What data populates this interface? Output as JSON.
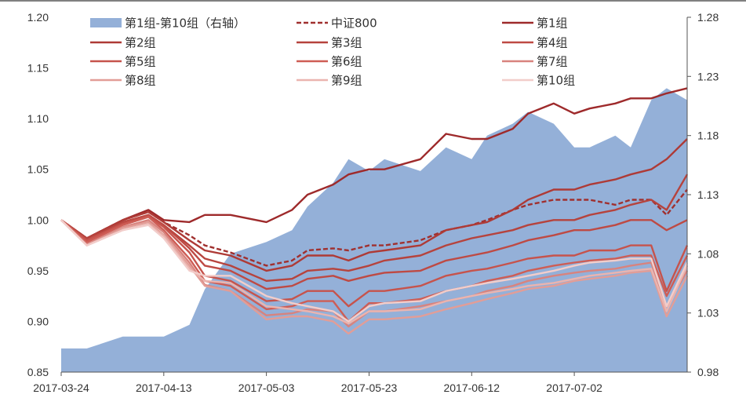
{
  "chart_data": {
    "type": "line",
    "x_dates": [
      "2017-03-24",
      "2017-03-29",
      "2017-04-05",
      "2017-04-10",
      "2017-04-13",
      "2017-04-18",
      "2017-04-21",
      "2017-04-26",
      "2017-05-03",
      "2017-05-08",
      "2017-05-11",
      "2017-05-16",
      "2017-05-19",
      "2017-05-23",
      "2017-05-26",
      "2017-06-02",
      "2017-06-07",
      "2017-06-12",
      "2017-06-15",
      "2017-06-20",
      "2017-06-23",
      "2017-06-28",
      "2017-07-02",
      "2017-07-05",
      "2017-07-10",
      "2017-07-13",
      "2017-07-17",
      "2017-07-20",
      "2017-07-24"
    ],
    "x_tick_labels": [
      "2017-03-24",
      "2017-04-13",
      "2017-05-03",
      "2017-05-23",
      "2017-06-12",
      "2017-07-02"
    ],
    "x_tick_dates": [
      "2017-03-24",
      "2017-04-13",
      "2017-05-03",
      "2017-05-23",
      "2017-06-12",
      "2017-07-02"
    ],
    "y_left": {
      "ticks": [
        "0.85",
        "0.90",
        "0.95",
        "1.00",
        "1.05",
        "1.10",
        "1.15",
        "1.20"
      ],
      "range": [
        0.85,
        1.2
      ]
    },
    "y_right": {
      "ticks": [
        "0.98",
        "1.03",
        "1.08",
        "1.13",
        "1.18",
        "1.23",
        "1.28"
      ],
      "range": [
        0.98,
        1.28
      ]
    },
    "area_series": {
      "name": "第1组-第10组（右轴）",
      "axis": "right",
      "color": "#94B0D8",
      "values": [
        1.0,
        1.0,
        1.01,
        1.01,
        1.01,
        1.02,
        1.05,
        1.08,
        1.09,
        1.1,
        1.12,
        1.14,
        1.16,
        1.15,
        1.16,
        1.15,
        1.17,
        1.16,
        1.18,
        1.19,
        1.2,
        1.19,
        1.17,
        1.17,
        1.18,
        1.17,
        1.21,
        1.22,
        1.21
      ]
    },
    "series": [
      {
        "name": "中证800",
        "color": "#A0302F",
        "dash": true,
        "values": [
          1.0,
          0.982,
          1.0,
          1.008,
          0.998,
          0.985,
          0.975,
          0.968,
          0.955,
          0.96,
          0.97,
          0.972,
          0.97,
          0.975,
          0.975,
          0.98,
          0.99,
          0.995,
          1.0,
          1.01,
          1.015,
          1.02,
          1.02,
          1.02,
          1.015,
          1.02,
          1.02,
          1.005,
          1.03
        ]
      },
      {
        "name": "第1组",
        "color": "#9E2A2B",
        "values": [
          1.0,
          0.982,
          1.0,
          1.01,
          1.0,
          0.998,
          1.005,
          1.005,
          0.998,
          1.01,
          1.025,
          1.035,
          1.045,
          1.05,
          1.05,
          1.06,
          1.085,
          1.08,
          1.08,
          1.09,
          1.105,
          1.115,
          1.105,
          1.11,
          1.115,
          1.12,
          1.12,
          1.125,
          1.13
        ]
      },
      {
        "name": "第2组",
        "color": "#AE3A36",
        "values": [
          1.0,
          0.982,
          1.0,
          1.008,
          0.998,
          0.98,
          0.97,
          0.965,
          0.95,
          0.955,
          0.965,
          0.965,
          0.96,
          0.968,
          0.97,
          0.975,
          0.99,
          0.995,
          0.998,
          1.01,
          1.02,
          1.03,
          1.03,
          1.035,
          1.04,
          1.045,
          1.05,
          1.06,
          1.08
        ]
      },
      {
        "name": "第3组",
        "color": "#B6433D",
        "values": [
          1.0,
          0.982,
          0.998,
          1.005,
          0.995,
          0.975,
          0.962,
          0.955,
          0.94,
          0.942,
          0.95,
          0.952,
          0.95,
          0.955,
          0.96,
          0.965,
          0.975,
          0.982,
          0.985,
          0.99,
          0.995,
          1.0,
          1.0,
          1.005,
          1.01,
          1.015,
          1.02,
          1.01,
          1.045
        ]
      },
      {
        "name": "第4组",
        "color": "#BE4A44",
        "values": [
          1.0,
          0.98,
          0.997,
          1.005,
          0.995,
          0.972,
          0.955,
          0.95,
          0.932,
          0.935,
          0.942,
          0.945,
          0.94,
          0.945,
          0.948,
          0.95,
          0.96,
          0.965,
          0.968,
          0.975,
          0.98,
          0.985,
          0.99,
          0.99,
          0.995,
          1.0,
          1.0,
          0.99,
          1.0
        ]
      },
      {
        "name": "第5组",
        "color": "#C6534C",
        "values": [
          1.0,
          0.98,
          0.996,
          1.004,
          0.993,
          0.968,
          0.945,
          0.94,
          0.92,
          0.922,
          0.93,
          0.93,
          0.915,
          0.93,
          0.93,
          0.935,
          0.945,
          0.95,
          0.952,
          0.958,
          0.962,
          0.965,
          0.965,
          0.97,
          0.97,
          0.975,
          0.975,
          0.93,
          0.975
        ]
      },
      {
        "name": "第6组",
        "color": "#CE5D55",
        "values": [
          1.0,
          0.978,
          0.995,
          1.003,
          0.99,
          0.962,
          0.94,
          0.935,
          0.912,
          0.915,
          0.92,
          0.92,
          0.9,
          0.918,
          0.918,
          0.922,
          0.93,
          0.935,
          0.94,
          0.945,
          0.95,
          0.955,
          0.958,
          0.96,
          0.962,
          0.965,
          0.965,
          0.925,
          0.965
        ]
      },
      {
        "name": "第7组",
        "color": "#D8837E",
        "values": [
          1.0,
          0.976,
          0.993,
          1.0,
          0.988,
          0.958,
          0.936,
          0.93,
          0.906,
          0.908,
          0.912,
          0.91,
          0.895,
          0.91,
          0.91,
          0.915,
          0.92,
          0.925,
          0.93,
          0.935,
          0.94,
          0.945,
          0.948,
          0.95,
          0.952,
          0.955,
          0.958,
          0.915,
          0.95
        ]
      },
      {
        "name": "第8组",
        "color": "#E29D97",
        "values": [
          1.0,
          0.975,
          0.992,
          0.998,
          0.985,
          0.955,
          0.935,
          0.93,
          0.902,
          0.905,
          0.905,
          0.9,
          0.888,
          0.902,
          0.902,
          0.905,
          0.912,
          0.918,
          0.922,
          0.928,
          0.932,
          0.935,
          0.94,
          0.942,
          0.945,
          0.948,
          0.95,
          0.905,
          0.945
        ]
      },
      {
        "name": "第9组",
        "color": "#EBB4AF",
        "values": [
          1.0,
          0.975,
          0.99,
          0.996,
          0.984,
          0.952,
          0.94,
          0.938,
          0.915,
          0.912,
          0.91,
          0.905,
          0.898,
          0.91,
          0.91,
          0.912,
          0.92,
          0.925,
          0.928,
          0.932,
          0.935,
          0.938,
          0.942,
          0.945,
          0.948,
          0.95,
          0.952,
          0.91,
          0.955
        ]
      },
      {
        "name": "第10组",
        "color": "#F2CDCA",
        "values": [
          1.0,
          0.975,
          0.99,
          0.995,
          0.982,
          0.95,
          0.945,
          0.945,
          0.925,
          0.918,
          0.915,
          0.91,
          0.9,
          0.915,
          0.918,
          0.92,
          0.93,
          0.935,
          0.938,
          0.942,
          0.945,
          0.95,
          0.955,
          0.958,
          0.96,
          0.962,
          0.962,
          0.915,
          0.958
        ]
      }
    ],
    "legend": {
      "placement": "top",
      "columns": 3,
      "entries": [
        "第1组-第10组（右轴）",
        "中证800",
        "第1组",
        "第2组",
        "第3组",
        "第4组",
        "第5组",
        "第6组",
        "第7组",
        "第8组",
        "第9组",
        "第10组"
      ]
    },
    "grid": false
  }
}
